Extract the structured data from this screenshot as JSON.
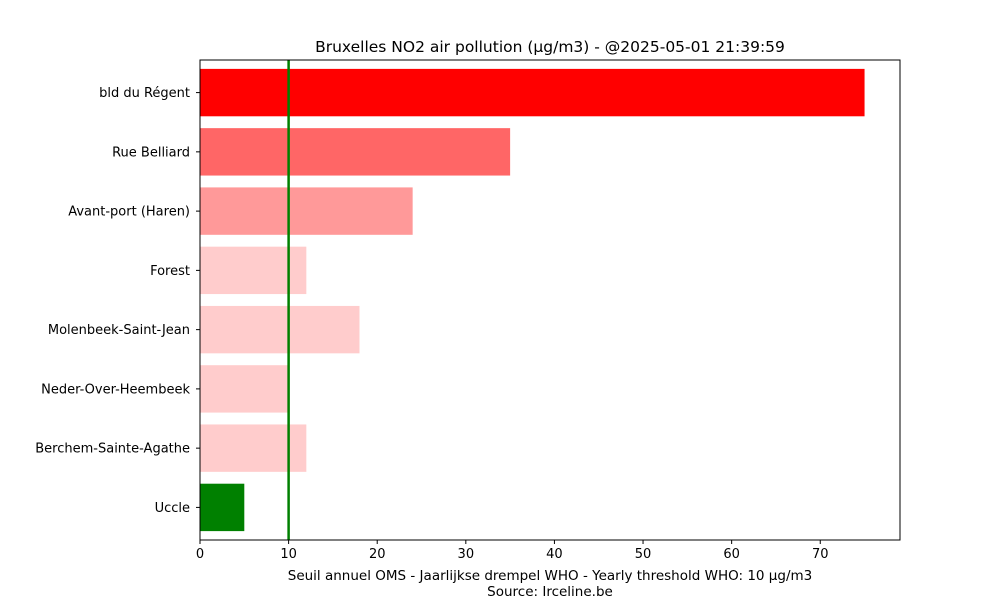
{
  "chart_data": {
    "type": "bar",
    "orientation": "horizontal",
    "title": "Bruxelles NO2 air pollution (µg/m3) - @2025-05-01 21:39:59",
    "xlabel": "Seuil annuel OMS - Jaarlijkse drempel WHO - Yearly threshold WHO: 10 µg/m3",
    "subxlabel": "Source: Irceline.be",
    "ylabel": "",
    "categories": [
      "bld du Régent",
      "Rue Belliard",
      "Avant-port (Haren)",
      "Forest",
      "Molenbeek-Saint-Jean",
      "Neder-Over-Heembeek",
      "Berchem-Sainte-Agathe",
      "Uccle"
    ],
    "values": [
      75,
      35,
      24,
      12,
      18,
      10,
      12,
      5
    ],
    "colors": [
      "#ff0000",
      "#ff6666",
      "#ff9999",
      "#ffcccc",
      "#ffcccc",
      "#ffcccc",
      "#ffcccc",
      "#008000"
    ],
    "xlim": [
      0,
      79
    ],
    "xticks": [
      0,
      10,
      20,
      30,
      40,
      50,
      60,
      70
    ],
    "threshold": 10,
    "threshold_color": "#008000",
    "grid": false
  }
}
